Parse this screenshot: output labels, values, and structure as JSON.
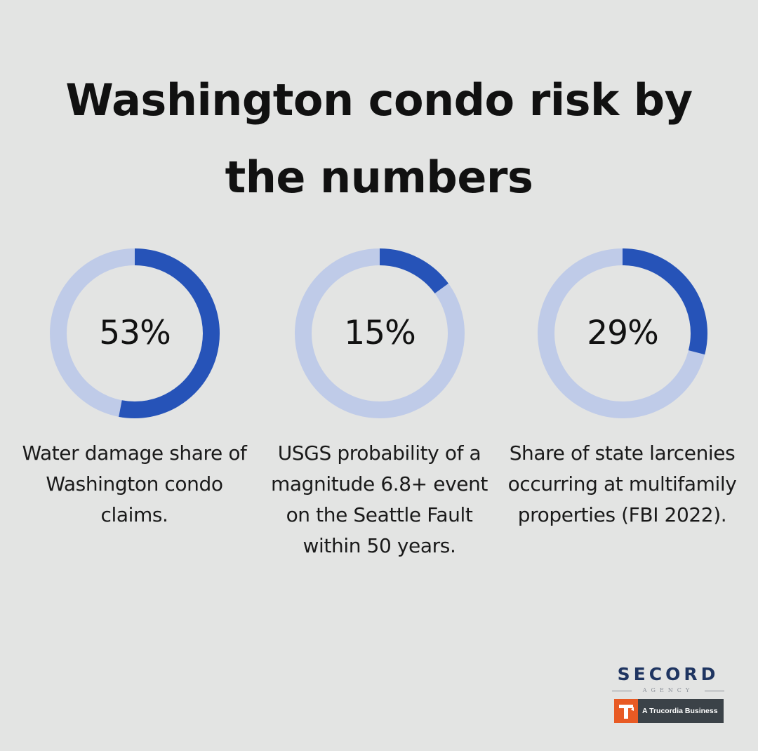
{
  "title": "Washington condo risk by the numbers",
  "colors": {
    "background": "#e3e4e3",
    "ring_filled": "#2653b8",
    "ring_track": "#bfcbe8",
    "text": "#111111"
  },
  "chart_data": {
    "type": "pie",
    "variant": "donut",
    "title": "Washington condo risk by the numbers",
    "items": [
      {
        "value": 53,
        "value_label": "53%",
        "caption": "Water damage share of Washington condo claims."
      },
      {
        "value": 15,
        "value_label": "15%",
        "caption": "USGS probability of a magnitude 6.8+ event on the Seattle Fault within 50 years."
      },
      {
        "value": 29,
        "value_label": "29%",
        "caption": "Share of state larcenies occurring at multifamily properties (FBI 2022)."
      }
    ]
  },
  "logo": {
    "name": "SECORD",
    "sub": "AGENCY",
    "tagline": "A Trucordia Business",
    "mark_letter": "T",
    "mark_color": "#e85a24",
    "wordmark_color": "#1f3561"
  }
}
